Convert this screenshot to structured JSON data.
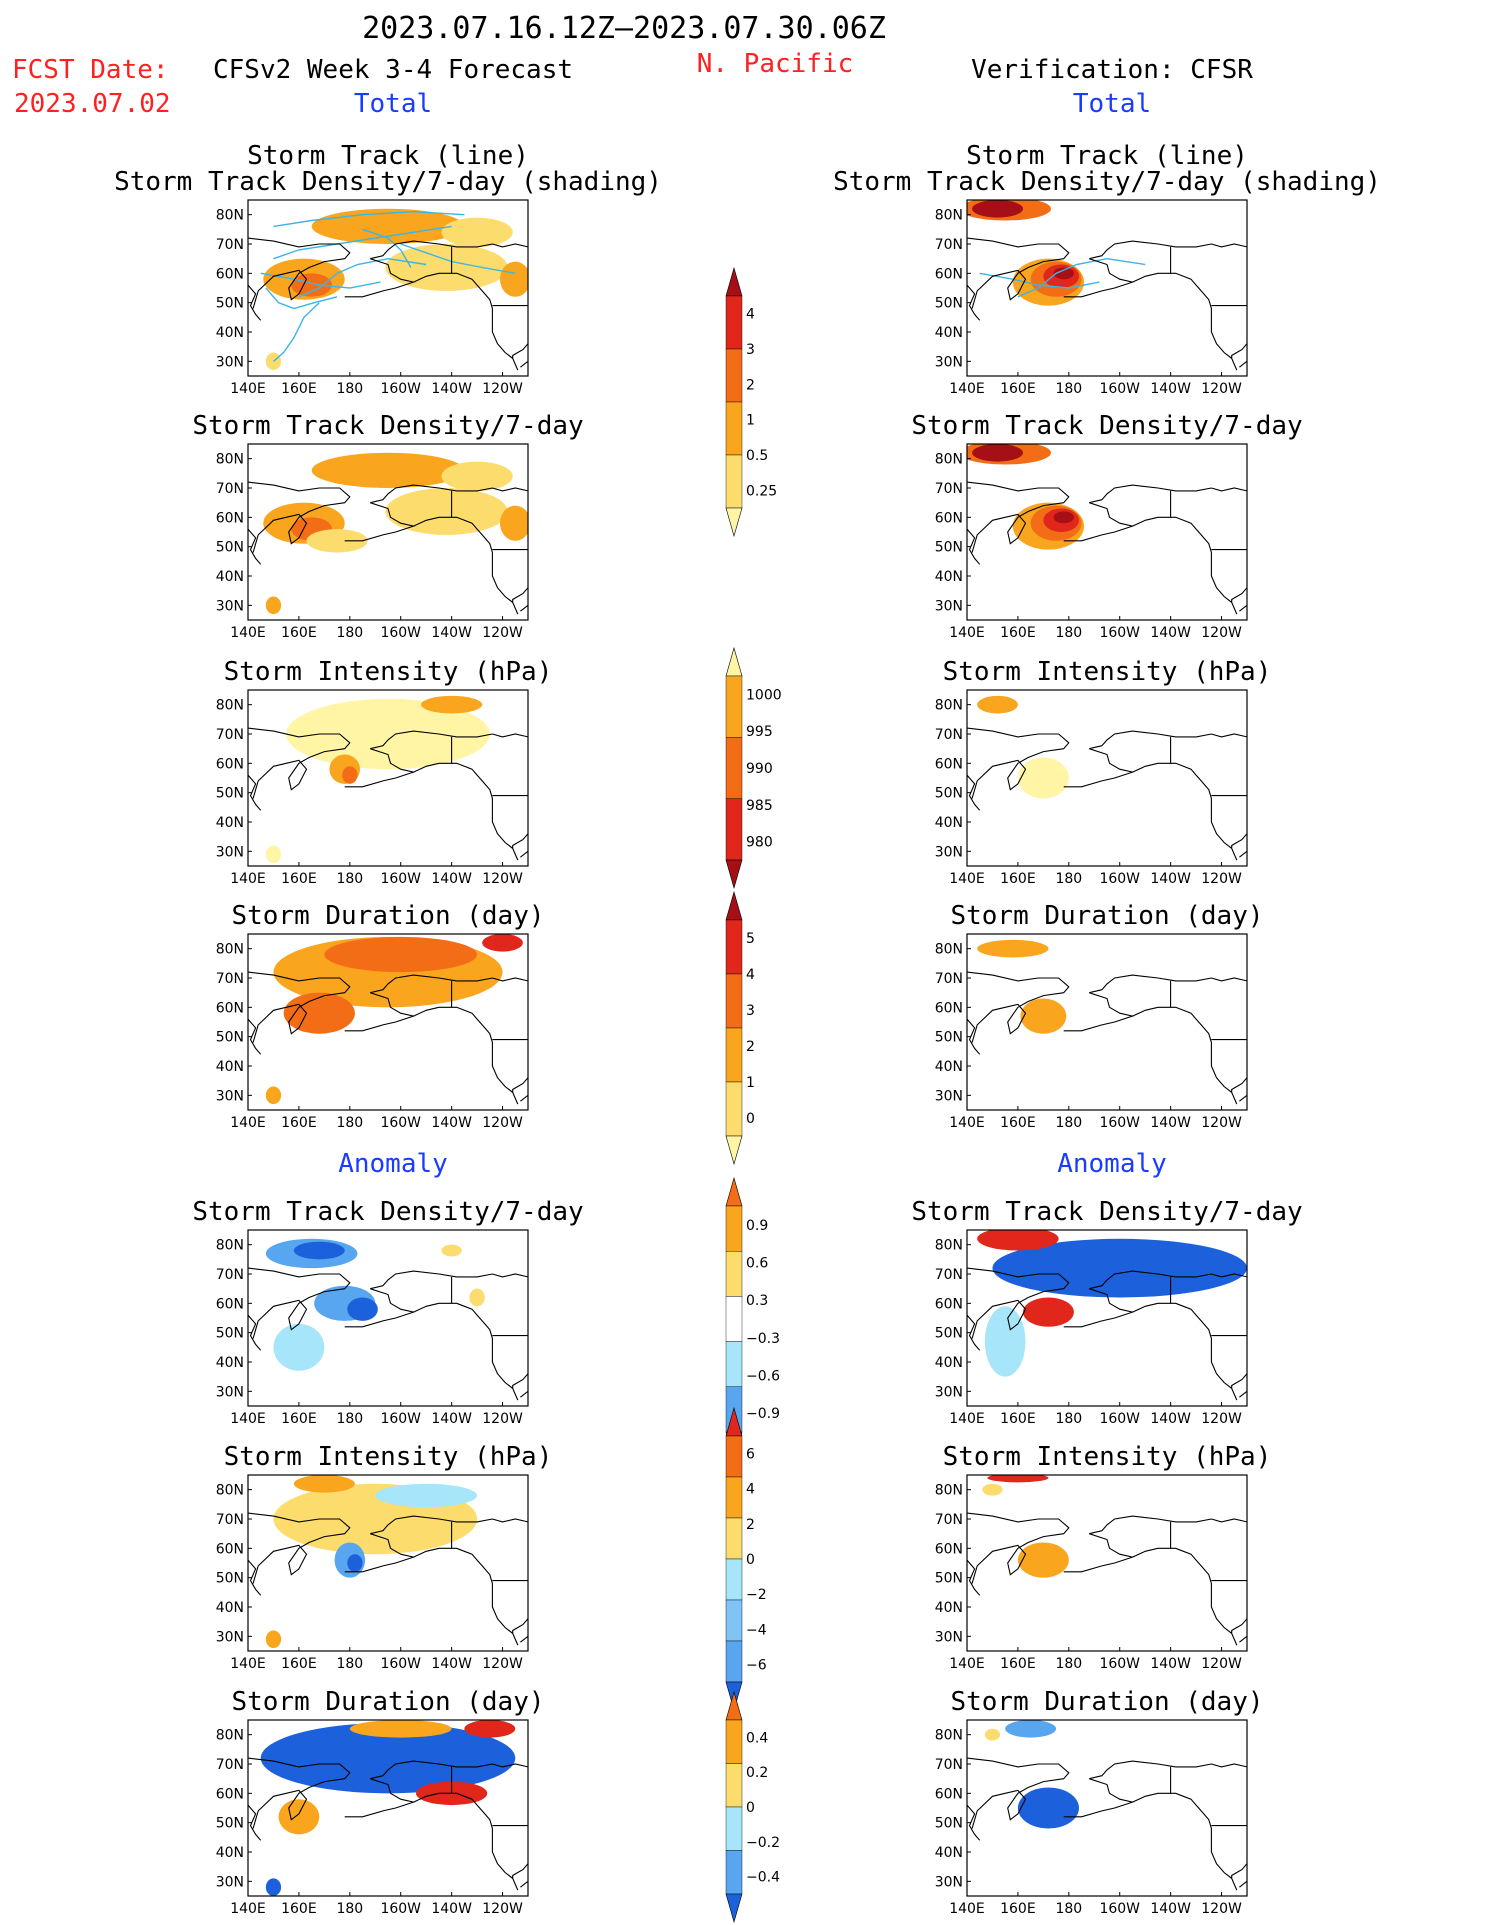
{
  "header": {
    "period": "2023.07.16.12Z–2023.07.30.06Z",
    "fcst_label": "FCST Date:",
    "fcst_date": "2023.07.02",
    "model_title": "CFSv2 Week 3-4 Forecast",
    "region": "N. Pacific",
    "verification_title": "Verification: CFSR",
    "left_total": "Total",
    "right_total": "Total",
    "left_anomaly": "Anomaly",
    "right_anomaly": "Anomaly"
  },
  "colors": {
    "pale_yellow": "#fff5a5",
    "yellow": "#fbdc6d",
    "orange": "#f9a51e",
    "dark_orange": "#f36d16",
    "red": "#e1261c",
    "dark_red": "#a50f15",
    "light_blue": "#a7e6fa",
    "blue": "#58a5f0",
    "dark_blue": "#1c61db",
    "track_line": "#39b6e6",
    "coast": "#000000"
  },
  "icons": [
    "coastline-map-icon"
  ],
  "map_axes": {
    "x_ticks": [
      "140E",
      "160E",
      "180",
      "160W",
      "140W",
      "120W"
    ],
    "y_ticks": [
      "80N",
      "70N",
      "60N",
      "50N",
      "40N",
      "30N"
    ],
    "lon_range": [
      140,
      250
    ],
    "lat_range": [
      25,
      85
    ]
  },
  "colorbars": [
    {
      "id": "density-total",
      "labels": [
        "4",
        "3",
        "2",
        "1",
        "0.5",
        "0.25"
      ],
      "colors": [
        "#a50f15",
        "#e1261c",
        "#f36d16",
        "#f9a51e",
        "#fbdc6d",
        "#fff5a5"
      ]
    },
    {
      "id": "intensity-total",
      "labels": [
        "1000",
        "995",
        "990",
        "985",
        "980"
      ],
      "colors": [
        "#fff5a5",
        "#f9a51e",
        "#f36d16",
        "#e1261c",
        "#a50f15"
      ]
    },
    {
      "id": "duration-total",
      "labels": [
        "5",
        "4",
        "3",
        "2",
        "1",
        "0"
      ],
      "colors": [
        "#a50f15",
        "#e1261c",
        "#f36d16",
        "#f9a51e",
        "#fbdc6d",
        "#fff5a5"
      ]
    },
    {
      "id": "density-anom",
      "labels": [
        "0.9",
        "0.6",
        "0.3",
        "−0.3",
        "−0.6",
        "−0.9"
      ],
      "colors": [
        "#f36d16",
        "#f9a51e",
        "#fbdc6d",
        "#ffffff",
        "#a7e6fa",
        "#58a5f0",
        "#1c61db"
      ]
    },
    {
      "id": "intensity-anom",
      "labels": [
        "6",
        "4",
        "2",
        "0",
        "−2",
        "−4",
        "−6"
      ],
      "colors": [
        "#e1261c",
        "#f36d16",
        "#f9a51e",
        "#fbdc6d",
        "#a7e6fa",
        "#7fc4f4",
        "#58a5f0",
        "#1c61db"
      ]
    },
    {
      "id": "duration-anom",
      "labels": [
        "0.4",
        "0.2",
        "0",
        "−0.2",
        "−0.4"
      ],
      "colors": [
        "#f36d16",
        "#f9a51e",
        "#fbdc6d",
        "#a7e6fa",
        "#58a5f0",
        "#1c61db"
      ]
    }
  ],
  "chart_data": [
    {
      "type": "heatmap",
      "panel": "fcst-track-total",
      "title_lines": [
        "Storm Track (line)",
        "Storm Track Density/7-day (shading)"
      ],
      "units": "density per 7 days",
      "blobs": [
        [
          195,
          76,
          30,
          6,
          "#f9a51e"
        ],
        [
          162,
          58,
          16,
          7,
          "#f9a51e"
        ],
        [
          165,
          56,
          8,
          4,
          "#f36d16"
        ],
        [
          218,
          62,
          24,
          8,
          "#fbdc6d"
        ],
        [
          245,
          58,
          6,
          6,
          "#f9a51e"
        ],
        [
          150,
          30,
          3,
          3,
          "#fbdc6d"
        ],
        [
          230,
          74,
          14,
          5,
          "#fbdc6d"
        ]
      ],
      "tracks": true
    },
    {
      "type": "heatmap",
      "panel": "cfsr-track-total",
      "title_lines": [
        "Storm Track (line)",
        "Storm Track Density/7-day (shading)"
      ],
      "units": "density per 7 days",
      "blobs": [
        [
          155,
          82,
          18,
          4,
          "#f36d16"
        ],
        [
          152,
          82,
          10,
          3,
          "#a50f15"
        ],
        [
          172,
          57,
          14,
          8,
          "#f9a51e"
        ],
        [
          175,
          58,
          10,
          6,
          "#f36d16"
        ],
        [
          177,
          59,
          7,
          4,
          "#e1261c"
        ],
        [
          178,
          60,
          4,
          2,
          "#a50f15"
        ]
      ],
      "tracks": true
    },
    {
      "type": "heatmap",
      "panel": "fcst-density-total",
      "title_lines": [
        "Storm Track Density/7-day"
      ],
      "units": "density per 7 days",
      "blobs": [
        [
          195,
          76,
          30,
          6,
          "#f9a51e"
        ],
        [
          162,
          58,
          16,
          7,
          "#f9a51e"
        ],
        [
          165,
          56,
          8,
          4,
          "#f36d16"
        ],
        [
          218,
          62,
          24,
          8,
          "#fbdc6d"
        ],
        [
          245,
          58,
          6,
          6,
          "#f9a51e"
        ],
        [
          150,
          30,
          3,
          3,
          "#f9a51e"
        ],
        [
          230,
          74,
          14,
          5,
          "#fbdc6d"
        ],
        [
          175,
          52,
          12,
          4,
          "#fbdc6d"
        ]
      ],
      "tracks": false
    },
    {
      "type": "heatmap",
      "panel": "cfsr-density-total",
      "title_lines": [
        "Storm Track Density/7-day"
      ],
      "units": "density per 7 days",
      "blobs": [
        [
          155,
          82,
          18,
          4,
          "#f36d16"
        ],
        [
          152,
          82,
          10,
          3,
          "#a50f15"
        ],
        [
          172,
          57,
          14,
          8,
          "#f9a51e"
        ],
        [
          175,
          58,
          10,
          6,
          "#f36d16"
        ],
        [
          177,
          59,
          7,
          4,
          "#e1261c"
        ],
        [
          178,
          60,
          4,
          2,
          "#a50f15"
        ]
      ],
      "tracks": false
    },
    {
      "type": "heatmap",
      "panel": "fcst-intensity-total",
      "title_lines": [
        "Storm Intensity (hPa)"
      ],
      "units": "hPa",
      "blobs": [
        [
          195,
          70,
          40,
          12,
          "#fff5a5"
        ],
        [
          220,
          80,
          12,
          3,
          "#f9a51e"
        ],
        [
          178,
          58,
          6,
          5,
          "#f9a51e"
        ],
        [
          180,
          56,
          3,
          3,
          "#f36d16"
        ],
        [
          150,
          29,
          3,
          3,
          "#fff5a5"
        ]
      ],
      "tracks": false
    },
    {
      "type": "heatmap",
      "panel": "cfsr-intensity-total",
      "title_lines": [
        "Storm Intensity (hPa)"
      ],
      "units": "hPa",
      "blobs": [
        [
          152,
          80,
          8,
          3,
          "#f9a51e"
        ],
        [
          170,
          55,
          10,
          7,
          "#fff5a5"
        ]
      ],
      "tracks": false
    },
    {
      "type": "heatmap",
      "panel": "fcst-duration-total",
      "title_lines": [
        "Storm Duration (day)"
      ],
      "units": "day",
      "blobs": [
        [
          195,
          72,
          45,
          12,
          "#f9a51e"
        ],
        [
          200,
          78,
          30,
          6,
          "#f36d16"
        ],
        [
          240,
          82,
          8,
          3,
          "#e1261c"
        ],
        [
          168,
          58,
          14,
          7,
          "#f36d16"
        ],
        [
          150,
          30,
          3,
          3,
          "#f9a51e"
        ]
      ],
      "tracks": false
    },
    {
      "type": "heatmap",
      "panel": "cfsr-duration-total",
      "title_lines": [
        "Storm Duration (day)"
      ],
      "units": "day",
      "blobs": [
        [
          158,
          80,
          14,
          3,
          "#f9a51e"
        ],
        [
          170,
          57,
          9,
          6,
          "#f9a51e"
        ]
      ],
      "tracks": false
    },
    {
      "type": "heatmap",
      "panel": "fcst-density-anom",
      "title_lines": [
        "Storm Track Density/7-day"
      ],
      "units": "density anomaly per 7 days",
      "blobs": [
        [
          165,
          77,
          18,
          5,
          "#58a5f0"
        ],
        [
          168,
          78,
          10,
          3,
          "#1c61db"
        ],
        [
          178,
          60,
          12,
          6,
          "#58a5f0"
        ],
        [
          185,
          58,
          6,
          4,
          "#1c61db"
        ],
        [
          160,
          45,
          10,
          8,
          "#a7e6fa"
        ],
        [
          220,
          78,
          4,
          2,
          "#fbdc6d"
        ],
        [
          230,
          62,
          3,
          3,
          "#fbdc6d"
        ]
      ],
      "tracks": false
    },
    {
      "type": "heatmap",
      "panel": "cfsr-density-anom",
      "title_lines": [
        "Storm Track Density/7-day"
      ],
      "units": "density anomaly per 7 days",
      "blobs": [
        [
          200,
          72,
          50,
          10,
          "#1c61db"
        ],
        [
          160,
          82,
          16,
          4,
          "#e1261c"
        ],
        [
          172,
          57,
          10,
          5,
          "#e1261c"
        ],
        [
          155,
          47,
          8,
          12,
          "#a7e6fa"
        ]
      ],
      "tracks": false
    },
    {
      "type": "heatmap",
      "panel": "fcst-intensity-anom",
      "title_lines": [
        "Storm Intensity (hPa)"
      ],
      "units": "hPa anomaly",
      "blobs": [
        [
          190,
          70,
          40,
          12,
          "#fbdc6d"
        ],
        [
          170,
          82,
          12,
          3,
          "#f9a51e"
        ],
        [
          180,
          56,
          6,
          6,
          "#58a5f0"
        ],
        [
          182,
          55,
          3,
          3,
          "#1c61db"
        ],
        [
          210,
          78,
          20,
          4,
          "#a7e6fa"
        ],
        [
          150,
          29,
          3,
          3,
          "#f9a51e"
        ]
      ],
      "tracks": false
    },
    {
      "type": "heatmap",
      "panel": "cfsr-intensity-anom",
      "title_lines": [
        "Storm Intensity (hPa)"
      ],
      "units": "hPa anomaly",
      "blobs": [
        [
          170,
          56,
          10,
          6,
          "#f9a51e"
        ],
        [
          160,
          84,
          12,
          1.5,
          "#e1261c"
        ],
        [
          150,
          80,
          4,
          2,
          "#fbdc6d"
        ]
      ],
      "tracks": false
    },
    {
      "type": "heatmap",
      "panel": "fcst-duration-anom",
      "title_lines": [
        "Storm Duration (day)"
      ],
      "units": "day anomaly",
      "blobs": [
        [
          195,
          72,
          50,
          12,
          "#1c61db"
        ],
        [
          200,
          82,
          20,
          3,
          "#f9a51e"
        ],
        [
          235,
          82,
          10,
          3,
          "#e1261c"
        ],
        [
          220,
          60,
          14,
          4,
          "#e1261c"
        ],
        [
          160,
          52,
          8,
          6,
          "#f9a51e"
        ],
        [
          150,
          28,
          3,
          3,
          "#1c61db"
        ]
      ],
      "tracks": false
    },
    {
      "type": "heatmap",
      "panel": "cfsr-duration-anom",
      "title_lines": [
        "Storm Duration (day)"
      ],
      "units": "day anomaly",
      "blobs": [
        [
          172,
          55,
          12,
          7,
          "#1c61db"
        ],
        [
          165,
          82,
          10,
          3,
          "#58a5f0"
        ],
        [
          150,
          80,
          3,
          2,
          "#fbdc6d"
        ]
      ],
      "tracks": false
    }
  ]
}
